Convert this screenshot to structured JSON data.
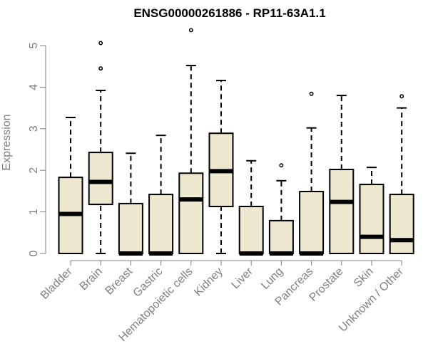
{
  "chart_data": {
    "type": "boxplot",
    "title": "ENSG00000261886 - RP11-63A1.1",
    "xlabel": "",
    "ylabel": "Expression",
    "ylim": [
      0,
      5.4
    ],
    "yticks": [
      0,
      1,
      2,
      3,
      4,
      5
    ],
    "grid": false,
    "legend": "none",
    "box_fill": "#efe8d0",
    "categories": [
      "Bladder",
      "Brain",
      "Breast",
      "Gastric",
      "Hematopoietic cells",
      "Kidney",
      "Liver",
      "Lung",
      "Pancreas",
      "Prostate",
      "Skin",
      "Unknown / Other"
    ],
    "boxes": [
      {
        "min": 0,
        "q1": 0,
        "median": 0.95,
        "q3": 1.83,
        "max": 3.27,
        "outliers": []
      },
      {
        "min": 0,
        "q1": 1.18,
        "median": 1.72,
        "q3": 2.43,
        "max": 3.92,
        "outliers": [
          4.45,
          5.06
        ]
      },
      {
        "min": 0,
        "q1": 0,
        "median": 0,
        "q3": 1.2,
        "max": 2.41,
        "outliers": []
      },
      {
        "min": 0,
        "q1": 0,
        "median": 0,
        "q3": 1.42,
        "max": 2.84,
        "outliers": []
      },
      {
        "min": 0,
        "q1": 0,
        "median": 1.3,
        "q3": 1.93,
        "max": 4.52,
        "outliers": [
          5.37
        ]
      },
      {
        "min": 0,
        "q1": 1.13,
        "median": 1.98,
        "q3": 2.89,
        "max": 4.16,
        "outliers": []
      },
      {
        "min": 0,
        "q1": 0,
        "median": 0,
        "q3": 1.13,
        "max": 2.23,
        "outliers": []
      },
      {
        "min": 0,
        "q1": 0,
        "median": 0,
        "q3": 0.79,
        "max": 1.75,
        "outliers": [
          2.12
        ]
      },
      {
        "min": 0,
        "q1": 0,
        "median": 0,
        "q3": 1.49,
        "max": 3.02,
        "outliers": [
          3.84
        ]
      },
      {
        "min": 0,
        "q1": 0,
        "median": 1.24,
        "q3": 2.02,
        "max": 3.8,
        "outliers": []
      },
      {
        "min": 0,
        "q1": 0,
        "median": 0.4,
        "q3": 1.66,
        "max": 2.07,
        "outliers": []
      },
      {
        "min": 0,
        "q1": 0,
        "median": 0.32,
        "q3": 1.42,
        "max": 3.5,
        "outliers": [
          3.78
        ]
      }
    ]
  }
}
